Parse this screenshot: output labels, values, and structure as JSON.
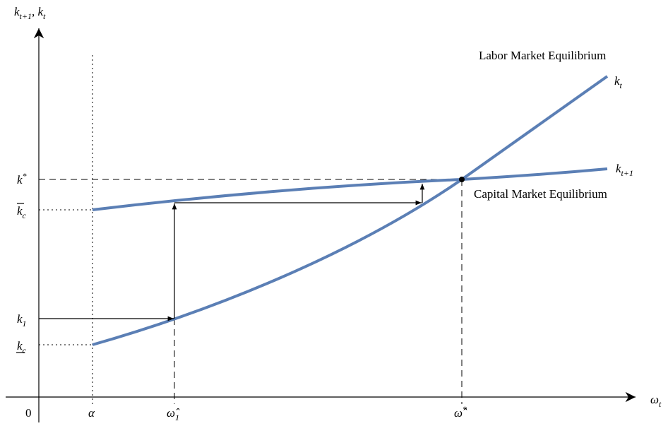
{
  "axes": {
    "y_label": {
      "parts": [
        {
          "text": "k",
          "sub": "t+1"
        },
        {
          "text": ", "
        },
        {
          "text": "k",
          "sub": "t"
        }
      ]
    },
    "x_label": {
      "text": "ω",
      "sub": "t"
    },
    "origin": "0"
  },
  "y_labels": [
    {
      "text": "k",
      "sup": "*"
    },
    {
      "text": "k",
      "sub": "c"
    },
    {
      "text": "k",
      "sub": "1"
    },
    {
      "text": "k",
      "sub": "c"
    }
  ],
  "x_labels": [
    {
      "text": "α"
    },
    {
      "text": "ω̂",
      "sub": "1"
    },
    {
      "text": "ω̂",
      "sup": "*"
    }
  ],
  "curves": {
    "labor": {
      "title": "Labor Market Equilibrium",
      "label": {
        "text": "k",
        "sub": "t"
      }
    },
    "capital": {
      "title": "Capital Market Equilibrium",
      "label": {
        "text": "k",
        "sub": "t+1"
      }
    }
  }
}
